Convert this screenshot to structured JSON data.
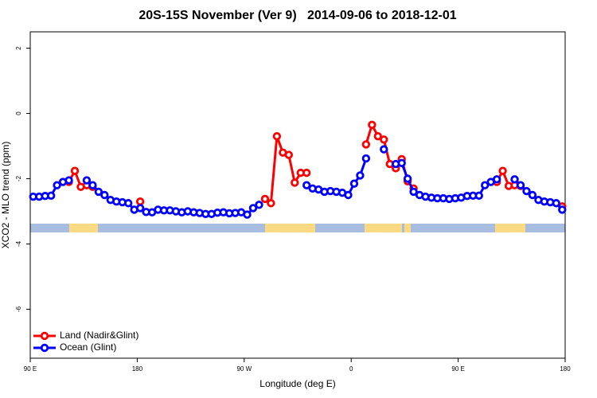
{
  "chart_data": {
    "type": "line",
    "title": "20S-15S November (Ver 9)   2014-09-06 to 2018-12-01",
    "x_label": "Longitude (deg E)",
    "y_label": "XCO2 - MLO trend (ppm)",
    "x": [
      92.5,
      97.5,
      102.5,
      107.5,
      112.5,
      117.5,
      122.5,
      127.5,
      132.5,
      137.5,
      142.5,
      147.5,
      152.5,
      157.5,
      162.5,
      167.5,
      172.5,
      177.5,
      182.5,
      187.5,
      192.5,
      197.5,
      202.5,
      207.5,
      212.5,
      217.5,
      222.5,
      227.5,
      232.5,
      237.5,
      242.5,
      247.5,
      252.5,
      257.5,
      262.5,
      267.5,
      272.5,
      277.5,
      282.5,
      287.5,
      292.5,
      297.5,
      302.5,
      307.5,
      312.5,
      317.5,
      322.5,
      327.5,
      332.5,
      337.5,
      342.5,
      347.5,
      352.5,
      357.5,
      362.5,
      367.5,
      372.5,
      377.5,
      382.5,
      387.5,
      392.5,
      397.5,
      402.5,
      407.5,
      412.5,
      417.5,
      422.5,
      427.5,
      432.5,
      437.5,
      442.5,
      447.5,
      452.5,
      457.5,
      462.5,
      467.5,
      472.5,
      477.5,
      482.5,
      487.5,
      492.5,
      497.5,
      502.5,
      507.5,
      512.5,
      517.5,
      522.5,
      527.5,
      532.5,
      537.5
    ],
    "series": [
      {
        "name": "Land (Nadir&Glint)",
        "color": "#ff0000",
        "values": [
          null,
          null,
          null,
          null,
          null,
          null,
          -2.1,
          -1.76,
          -2.25,
          -2.2,
          -2.25,
          null,
          null,
          null,
          null,
          null,
          null,
          null,
          -2.7,
          null,
          null,
          null,
          null,
          null,
          null,
          null,
          null,
          null,
          null,
          null,
          null,
          null,
          null,
          null,
          null,
          null,
          null,
          null,
          null,
          -2.62,
          -2.75,
          -0.7,
          -1.2,
          -1.27,
          -2.12,
          -1.82,
          -1.82,
          null,
          null,
          null,
          null,
          null,
          null,
          null,
          null,
          null,
          -0.95,
          -0.35,
          -0.7,
          -0.8,
          -1.55,
          -1.68,
          -1.4,
          -2.08,
          -2.3,
          null,
          null,
          null,
          null,
          null,
          null,
          null,
          null,
          null,
          null,
          null,
          null,
          null,
          -2.1,
          -1.76,
          -2.22,
          -2.2,
          -2.22,
          null,
          null,
          null,
          null,
          null,
          null,
          -2.85
        ]
      },
      {
        "name": "Ocean (Glint)",
        "color": "#0000ff",
        "values": [
          -2.55,
          -2.55,
          -2.53,
          -2.52,
          -2.2,
          -2.1,
          -2.05,
          null,
          null,
          -2.05,
          -2.2,
          -2.4,
          -2.5,
          -2.65,
          -2.7,
          -2.72,
          -2.75,
          -2.95,
          -2.9,
          -3.02,
          -3.03,
          -2.95,
          -2.97,
          -2.97,
          -3.0,
          -3.03,
          -3.0,
          -3.03,
          -3.05,
          -3.08,
          -3.08,
          -3.04,
          -3.03,
          -3.06,
          -3.05,
          -3.03,
          -3.1,
          -2.9,
          -2.8,
          null,
          null,
          null,
          null,
          null,
          null,
          null,
          -2.2,
          -2.3,
          -2.33,
          -2.4,
          -2.38,
          -2.4,
          -2.43,
          -2.5,
          -2.15,
          -1.9,
          -1.38,
          null,
          null,
          -1.1,
          null,
          -1.55,
          -1.52,
          -2.0,
          -2.4,
          -2.5,
          -2.55,
          -2.58,
          -2.6,
          -2.6,
          -2.62,
          -2.6,
          -2.58,
          -2.53,
          -2.52,
          -2.52,
          -2.2,
          -2.1,
          -2.02,
          null,
          null,
          -2.02,
          -2.2,
          -2.38,
          -2.5,
          -2.65,
          -2.7,
          -2.72,
          -2.75,
          -2.95
        ]
      }
    ],
    "xlim": [
      90,
      540
    ],
    "xticks": [
      {
        "value": 90,
        "label": "90 E"
      },
      180,
      {
        "value": 270,
        "label": "90 W"
      },
      {
        "value": 360,
        "label": "0"
      },
      {
        "value": 450,
        "label": "90 E"
      },
      {
        "value": 540,
        "label": "180"
      }
    ],
    "ylim": [
      -7.5,
      2.5
    ],
    "yticks": [
      2,
      0,
      -2,
      -4,
      -6
    ],
    "legend": "bottom-left"
  }
}
